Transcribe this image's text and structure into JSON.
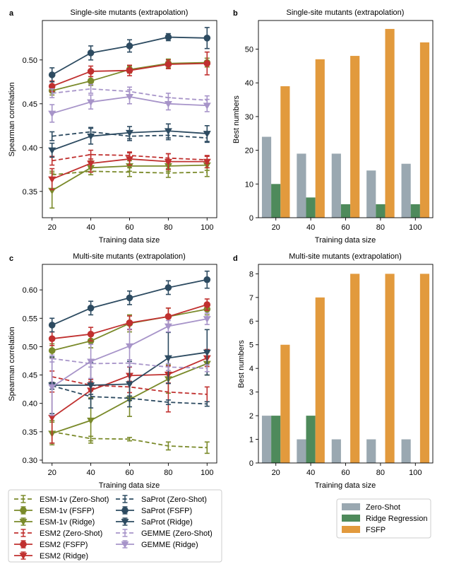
{
  "colors": {
    "esm1v": "#7a8a2a",
    "esm2": "#c0302f",
    "saprot": "#2d4b61",
    "gemme": "#a794c9",
    "zero_shot": "#9aa8b1",
    "ridge": "#4e8a5b",
    "fsfp": "#e29a3d"
  },
  "chart_data": [
    {
      "panel": "a",
      "type": "line",
      "title": "Single-site mutants (extrapolation)",
      "xlabel": "Training data size",
      "ylabel": "Spearman correlation",
      "x": [
        20,
        40,
        60,
        80,
        100
      ],
      "xlim": [
        15,
        105
      ],
      "ylim": [
        0.32,
        0.545
      ],
      "yticks": [
        0.35,
        0.4,
        0.45,
        0.5
      ],
      "ytick_labels": [
        "0.35",
        "0.40",
        "0.45",
        "0.50"
      ],
      "series": [
        {
          "name": "ESM-1v (Zero-Shot)",
          "color_key": "esm1v",
          "style": "dashed",
          "marker": "cap",
          "values": [
            0.369,
            0.373,
            0.372,
            0.371,
            0.372
          ],
          "err": [
            0.004,
            0.004,
            0.005,
            0.005,
            0.005
          ]
        },
        {
          "name": "ESM-1v (FSFP)",
          "color_key": "esm1v",
          "style": "solid",
          "marker": "circle",
          "values": [
            0.465,
            0.476,
            0.489,
            0.496,
            0.497
          ],
          "err": [
            0.005,
            0.005,
            0.004,
            0.005,
            0.005
          ]
        },
        {
          "name": "ESM-1v (Ridge)",
          "color_key": "esm1v",
          "style": "solid",
          "marker": "tri",
          "values": [
            0.351,
            0.377,
            0.379,
            0.379,
            0.38
          ],
          "err": [
            0.02,
            0.008,
            0.006,
            0.006,
            0.006
          ]
        },
        {
          "name": "ESM2 (Zero-Shot)",
          "color_key": "esm2",
          "style": "dashed",
          "marker": "cap",
          "values": [
            0.385,
            0.392,
            0.391,
            0.388,
            0.386
          ],
          "err": [
            0.005,
            0.005,
            0.004,
            0.005,
            0.004
          ]
        },
        {
          "name": "ESM2 (FSFP)",
          "color_key": "esm2",
          "style": "solid",
          "marker": "circle",
          "values": [
            0.47,
            0.487,
            0.488,
            0.495,
            0.496
          ],
          "err": [
            0.006,
            0.006,
            0.006,
            0.005,
            0.013
          ]
        },
        {
          "name": "ESM2 (Ridge)",
          "color_key": "esm2",
          "style": "solid",
          "marker": "tri",
          "values": [
            0.364,
            0.382,
            0.387,
            0.384,
            0.384
          ],
          "err": [
            0.012,
            0.01,
            0.007,
            0.009,
            0.007
          ]
        },
        {
          "name": "SaProt (Zero-Shot)",
          "color_key": "saprot",
          "style": "dashed",
          "marker": "cap",
          "values": [
            0.413,
            0.418,
            0.413,
            0.414,
            0.411
          ],
          "err": [
            0.005,
            0.005,
            0.005,
            0.005,
            0.005
          ]
        },
        {
          "name": "SaProt (FSFP)",
          "color_key": "saprot",
          "style": "solid",
          "marker": "circle",
          "values": [
            0.483,
            0.508,
            0.516,
            0.526,
            0.525
          ],
          "err": [
            0.008,
            0.008,
            0.007,
            0.004,
            0.012
          ]
        },
        {
          "name": "SaProt (Ridge)",
          "color_key": "saprot",
          "style": "solid",
          "marker": "tri",
          "values": [
            0.397,
            0.413,
            0.417,
            0.419,
            0.416
          ],
          "err": [
            0.008,
            0.009,
            0.007,
            0.008,
            0.009
          ]
        },
        {
          "name": "GEMME (Zero-Shot)",
          "color_key": "gemme",
          "style": "dashed",
          "marker": "cap",
          "values": [
            0.462,
            0.467,
            0.464,
            0.457,
            0.454
          ],
          "err": [
            0.005,
            0.005,
            0.005,
            0.005,
            0.005
          ]
        },
        {
          "name": "GEMME (Ridge)",
          "color_key": "gemme",
          "style": "solid",
          "marker": "tri",
          "values": [
            0.439,
            0.452,
            0.458,
            0.45,
            0.448
          ],
          "err": [
            0.01,
            0.008,
            0.008,
            0.007,
            0.007
          ]
        }
      ]
    },
    {
      "panel": "b",
      "type": "bar",
      "title": "Single-site mutants (extrapolation)",
      "xlabel": "Training data size",
      "ylabel": "Best numbers",
      "categories": [
        "20",
        "40",
        "60",
        "80",
        "100"
      ],
      "ylim": [
        0,
        58.5
      ],
      "yticks": [
        0,
        10,
        20,
        30,
        40,
        50
      ],
      "ytick_labels": [
        "0",
        "10",
        "20",
        "30",
        "40",
        "50"
      ],
      "series": [
        {
          "name": "Zero-Shot",
          "color_key": "zero_shot",
          "values": [
            24,
            19,
            19,
            14,
            16
          ]
        },
        {
          "name": "Ridge Regression",
          "color_key": "ridge",
          "values": [
            10,
            6,
            4,
            4,
            4
          ]
        },
        {
          "name": "FSFP",
          "color_key": "fsfp",
          "values": [
            39,
            47,
            48,
            56,
            52
          ]
        }
      ]
    },
    {
      "panel": "c",
      "type": "line",
      "title": "Multi-site mutants (extrapolation)",
      "xlabel": "Training data size",
      "ylabel": "Spearman correlation",
      "x": [
        20,
        40,
        60,
        80,
        100
      ],
      "xlim": [
        15,
        105
      ],
      "ylim": [
        0.295,
        0.645
      ],
      "yticks": [
        0.3,
        0.35,
        0.4,
        0.45,
        0.5,
        0.55,
        0.6
      ],
      "ytick_labels": [
        "0.30",
        "0.35",
        "0.40",
        "0.45",
        "0.50",
        "0.55",
        "0.60"
      ],
      "series": [
        {
          "name": "ESM-1v (Zero-Shot)",
          "color_key": "esm1v",
          "style": "dashed",
          "marker": "cap",
          "values": [
            0.35,
            0.338,
            0.337,
            0.325,
            0.322
          ],
          "err": [
            0.02,
            0.004,
            0.003,
            0.007,
            0.01
          ]
        },
        {
          "name": "ESM-1v (FSFP)",
          "color_key": "esm1v",
          "style": "solid",
          "marker": "circle",
          "values": [
            0.493,
            0.51,
            0.541,
            0.553,
            0.566
          ],
          "err": [
            0.012,
            0.012,
            0.015,
            0.015,
            0.01
          ]
        },
        {
          "name": "ESM-1v (Ridge)",
          "color_key": "esm1v",
          "style": "solid",
          "marker": "tri",
          "values": [
            0.347,
            0.37,
            0.407,
            0.443,
            0.47
          ],
          "err": [
            0.02,
            0.04,
            0.03,
            0.025,
            0.02
          ]
        },
        {
          "name": "ESM2 (Zero-Shot)",
          "color_key": "esm2",
          "style": "dashed",
          "marker": "cap",
          "values": [
            0.447,
            0.432,
            0.429,
            0.42,
            0.416
          ],
          "err": [
            0.01,
            0.01,
            0.01,
            0.035,
            0.013
          ]
        },
        {
          "name": "ESM2 (FSFP)",
          "color_key": "esm2",
          "style": "solid",
          "marker": "circle",
          "values": [
            0.514,
            0.522,
            0.542,
            0.553,
            0.574
          ],
          "err": [
            0.012,
            0.012,
            0.012,
            0.015,
            0.01
          ]
        },
        {
          "name": "ESM2 (Ridge)",
          "color_key": "esm2",
          "style": "solid",
          "marker": "tri",
          "values": [
            0.375,
            0.423,
            0.449,
            0.451,
            0.48
          ],
          "err": [
            0.045,
            0.015,
            0.015,
            0.015,
            0.015
          ]
        },
        {
          "name": "SaProt (Zero-Shot)",
          "color_key": "saprot",
          "style": "dashed",
          "marker": "cap",
          "values": [
            0.431,
            0.412,
            0.409,
            0.402,
            0.399
          ],
          "err": [
            0.006,
            0.004,
            0.004,
            0.004,
            0.004
          ]
        },
        {
          "name": "SaProt (FSFP)",
          "color_key": "saprot",
          "style": "solid",
          "marker": "circle",
          "values": [
            0.538,
            0.568,
            0.586,
            0.604,
            0.618
          ],
          "err": [
            0.012,
            0.012,
            0.012,
            0.012,
            0.015
          ]
        },
        {
          "name": "SaProt (Ridge)",
          "color_key": "saprot",
          "style": "solid",
          "marker": "tri",
          "values": [
            0.432,
            0.432,
            0.434,
            0.48,
            0.49
          ],
          "err": [
            0.05,
            0.04,
            0.04,
            0.045,
            0.04
          ]
        },
        {
          "name": "GEMME (Zero-Shot)",
          "color_key": "gemme",
          "style": "dashed",
          "marker": "cap",
          "values": [
            0.479,
            0.47,
            0.471,
            0.464,
            0.462
          ],
          "err": [
            0.006,
            0.006,
            0.006,
            0.006,
            0.006
          ]
        },
        {
          "name": "GEMME (Ridge)",
          "color_key": "gemme",
          "style": "solid",
          "marker": "tri",
          "values": [
            0.429,
            0.474,
            0.501,
            0.536,
            0.549
          ],
          "err": [
            0.05,
            0.03,
            0.03,
            0.01,
            0.01
          ]
        }
      ]
    },
    {
      "panel": "d",
      "type": "bar",
      "title": "Multi-site mutants (extrapolation)",
      "xlabel": "Training data size",
      "ylabel": "Best numbers",
      "categories": [
        "20",
        "40",
        "60",
        "80",
        "100"
      ],
      "ylim": [
        0,
        8.4
      ],
      "yticks": [
        0,
        1,
        2,
        3,
        4,
        5,
        6,
        7,
        8
      ],
      "ytick_labels": [
        "0",
        "1",
        "2",
        "3",
        "4",
        "5",
        "6",
        "7",
        "8"
      ],
      "series": [
        {
          "name": "Zero-Shot",
          "color_key": "zero_shot",
          "values": [
            2,
            1,
            1,
            1,
            1
          ]
        },
        {
          "name": "Ridge Regression",
          "color_key": "ridge",
          "values": [
            2,
            2,
            0,
            0,
            0
          ]
        },
        {
          "name": "FSFP",
          "color_key": "fsfp",
          "values": [
            5,
            7,
            8,
            8,
            8
          ]
        }
      ]
    }
  ],
  "line_legend": {
    "col1": [
      "ESM-1v (Zero-Shot)",
      "ESM-1v (FSFP)",
      "ESM-1v (Ridge)",
      "ESM2 (Zero-Shot)",
      "ESM2 (FSFP)",
      "ESM2 (Ridge)"
    ],
    "col2": [
      "SaProt (Zero-Shot)",
      "SaProt (FSFP)",
      "SaProt (Ridge)",
      "GEMME (Zero-Shot)",
      "GEMME (Ridge)"
    ]
  },
  "bar_legend": [
    "Zero-Shot",
    "Ridge Regression",
    "FSFP"
  ]
}
